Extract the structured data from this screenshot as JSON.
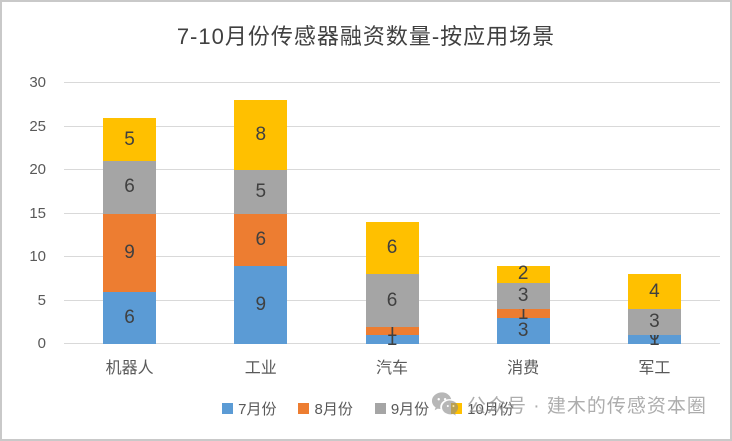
{
  "title": "7-10月份传感器融资数量-按应用场景",
  "chart_data": {
    "type": "bar",
    "stacked": true,
    "title": "7-10月份传感器融资数量-按应用场景",
    "categories": [
      "机器人",
      "工业",
      "汽车",
      "消费",
      "军工"
    ],
    "series": [
      {
        "name": "7月份",
        "color": "#5B9BD5",
        "values": [
          6,
          9,
          1,
          3,
          1
        ]
      },
      {
        "name": "8月份",
        "color": "#ED7D31",
        "values": [
          9,
          6,
          1,
          1,
          0
        ]
      },
      {
        "name": "9月份",
        "color": "#A5A5A5",
        "values": [
          6,
          5,
          6,
          3,
          3
        ]
      },
      {
        "name": "10月份",
        "color": "#FFC000",
        "values": [
          5,
          8,
          6,
          2,
          4
        ]
      }
    ],
    "totals": [
      26,
      28,
      14,
      9,
      8
    ],
    "xlabel": "",
    "ylabel": "",
    "ylim": [
      0,
      30
    ],
    "yticks": [
      0,
      5,
      10,
      15,
      20,
      25,
      30
    ],
    "grid": true,
    "legend_position": "bottom",
    "data_labels": true
  },
  "watermark": {
    "icon": "wechat-icon",
    "text": "公众号 · 建木的传感资本圈"
  },
  "colors": {
    "blue": "#5B9BD5",
    "orange": "#ED7D31",
    "gray": "#A5A5A5",
    "yellow": "#FFC000",
    "gridline": "#d9d9d9",
    "axis_text": "#595959",
    "data_label": "#404040",
    "title_text": "#404040",
    "frame_border": "#c9c9c9"
  }
}
